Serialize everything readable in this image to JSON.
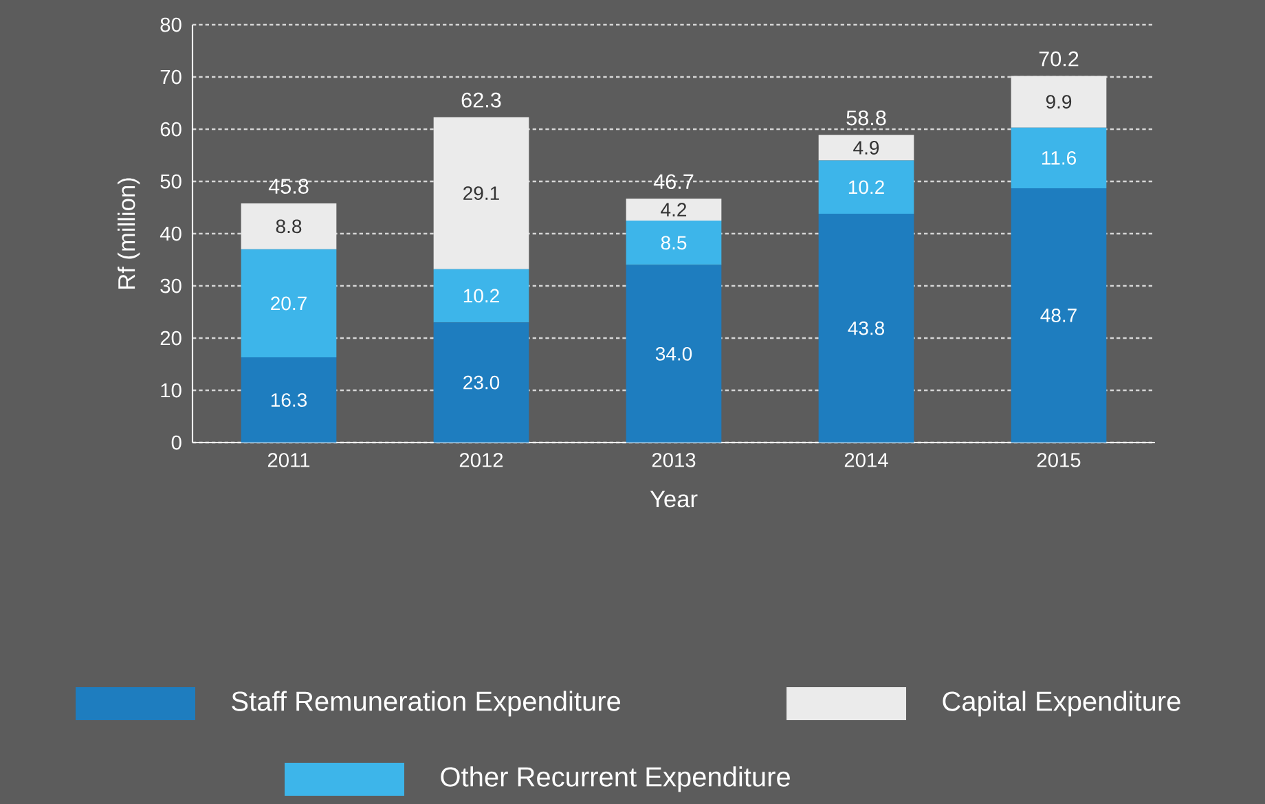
{
  "chart_data": {
    "type": "bar",
    "stacked": true,
    "xlabel": "Year",
    "ylabel": "Rf (million)",
    "categories": [
      "2011",
      "2012",
      "2013",
      "2014",
      "2015"
    ],
    "series": [
      {
        "name": "Staff Remuneration Expenditure",
        "color": "#1e7dbf",
        "values": [
          16.3,
          23.0,
          34.0,
          43.8,
          48.7
        ],
        "value_labels": [
          "16.3",
          "23.0",
          "34.0",
          "43.8",
          "48.7"
        ]
      },
      {
        "name": "Other Recurrent Expenditure",
        "color": "#3db5ea",
        "values": [
          20.7,
          10.2,
          8.5,
          10.2,
          11.6
        ],
        "value_labels": [
          "20.7",
          "10.2",
          "8.5",
          "10.2",
          "11.6"
        ]
      },
      {
        "name": "Capital Expenditure",
        "color": "#ebebeb",
        "values": [
          8.8,
          29.1,
          4.2,
          4.9,
          9.9
        ],
        "value_labels": [
          "8.8",
          "29.1",
          "4.2",
          "4.9",
          "9.9"
        ]
      }
    ],
    "totals": [
      "45.8",
      "62.3",
      "46.7",
      "58.8",
      "70.2"
    ],
    "ylim": [
      0,
      80
    ],
    "yticks": [
      0,
      10,
      20,
      30,
      40,
      50,
      60,
      70,
      80
    ],
    "grid": "y",
    "legend": "bottom"
  }
}
